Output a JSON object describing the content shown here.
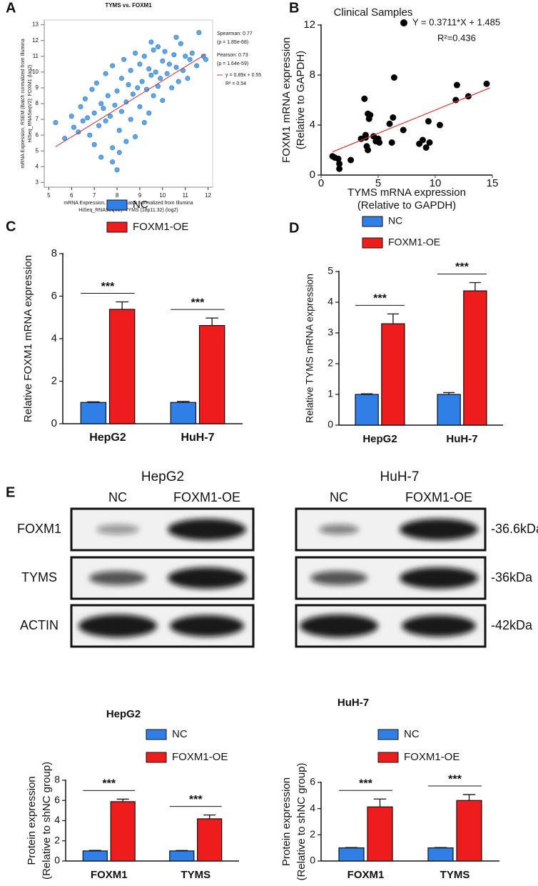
{
  "panel_labels": [
    "A",
    "B",
    "C",
    "D",
    "E"
  ],
  "chart_data": [
    {
      "type": "scatter",
      "title": "TYMS vs. FOXM1",
      "xlabel": [
        "mRNA Expression, RSEM (Batch normalized from Illumina",
        "HiSeq_RNASeqV2): TYMS (18p11.32) (log2)"
      ],
      "ylabel": [
        "mRNA Expression, RSEM (Batch normalized from Illumina",
        "HiSeq_RNASeqV2): FOXM1 (log2)"
      ],
      "xlim": [
        4.8,
        12.2
      ],
      "xticks": [
        5,
        6,
        7,
        8,
        9,
        10,
        11,
        12
      ],
      "ylim": [
        2.7,
        13.3
      ],
      "yticks": [
        3,
        4,
        5,
        6,
        7,
        8,
        9,
        10,
        11,
        12,
        13
      ],
      "color": "#4d9ee8",
      "x": [
        5.3,
        5.7,
        6.0,
        6.1,
        6.3,
        6.4,
        6.5,
        6.6,
        6.7,
        6.8,
        6.9,
        7.0,
        7.0,
        7.1,
        7.2,
        7.3,
        7.3,
        7.4,
        7.5,
        7.5,
        7.6,
        7.7,
        7.8,
        7.8,
        7.9,
        8.0,
        8.0,
        8.1,
        8.2,
        8.2,
        8.3,
        8.4,
        8.4,
        8.5,
        8.6,
        8.6,
        8.7,
        8.8,
        8.8,
        8.9,
        9.0,
        9.0,
        9.1,
        9.2,
        9.2,
        9.3,
        9.4,
        9.4,
        9.5,
        9.6,
        9.6,
        9.7,
        9.8,
        9.8,
        9.9,
        10.0,
        10.0,
        10.1,
        10.2,
        10.3,
        10.4,
        10.5,
        10.6,
        10.7,
        10.8,
        10.9,
        11.0,
        11.1,
        11.2,
        11.3,
        11.5,
        11.6,
        11.8,
        11.9,
        7.8,
        8.1,
        9.5,
        10.6
      ],
      "y": [
        6.8,
        5.8,
        7.2,
        6.5,
        6.2,
        7.8,
        6.9,
        8.3,
        7.1,
        6.0,
        8.9,
        7.4,
        5.4,
        9.3,
        6.6,
        8.0,
        4.6,
        7.7,
        6.9,
        9.9,
        8.5,
        7.2,
        4.3,
        10.4,
        7.9,
        3.8,
        8.8,
        6.3,
        9.6,
        7.5,
        10.8,
        8.1,
        5.6,
        9.2,
        7.0,
        10.1,
        8.6,
        5.9,
        11.2,
        9.0,
        7.8,
        10.5,
        9.4,
        6.8,
        11.0,
        8.9,
        10.2,
        7.4,
        9.8,
        11.4,
        8.5,
        10.0,
        9.1,
        11.6,
        9.6,
        10.7,
        8.2,
        11.3,
        9.9,
        10.5,
        9.0,
        11.1,
        10.3,
        9.4,
        11.8,
        10.1,
        11.0,
        9.6,
        10.8,
        11.2,
        10.4,
        12.5,
        11.0,
        10.8,
        5.2,
        4.9,
        11.9,
        12.2
      ],
      "annotations": [
        "Spearman: 0.77",
        "(p = 1.85e-68)",
        "Pearson: 0.73",
        "(p = 1.64e-59)"
      ],
      "fit": {
        "label": "y = 0.89x + 0.55",
        "r2_label": "R² = 0.54",
        "slope": 0.89,
        "intercept": 0.55,
        "x_range": [
          5.3,
          11.9
        ],
        "color": "#c8343c"
      }
    },
    {
      "type": "scatter",
      "title": "Clinical Samples",
      "xlabel": [
        "TYMS mRNA expression",
        "(Relative to GAPDH)"
      ],
      "ylabel": [
        "FOXM1 mRNA expression",
        "(Relative to GAPDH)"
      ],
      "xlim": [
        0,
        15
      ],
      "xticks": [
        0,
        5,
        10,
        15
      ],
      "ylim": [
        0,
        12
      ],
      "yticks": [
        0,
        4,
        8,
        12
      ],
      "color": "#000000",
      "x": [
        1.0,
        1.2,
        1.5,
        1.6,
        1.6,
        2.6,
        3.5,
        3.8,
        3.9,
        4.0,
        4.1,
        4.1,
        4.2,
        4.3,
        4.6,
        4.8,
        5.0,
        5.1,
        6.0,
        6.2,
        6.3,
        6.4,
        7.2,
        8.6,
        8.9,
        9.2,
        9.4,
        9.5,
        10.4,
        11.8,
        11.9,
        12.9,
        14.5,
        3.9
      ],
      "y": [
        1.5,
        1.4,
        1.3,
        0.9,
        0.5,
        1.2,
        2.9,
        6.1,
        3.2,
        2.3,
        4.9,
        2.0,
        4.5,
        4.8,
        3.1,
        2.7,
        2.9,
        2.6,
        4.1,
        2.6,
        4.6,
        7.8,
        3.6,
        2.5,
        2.8,
        2.2,
        4.3,
        2.6,
        4.0,
        6.0,
        7.2,
        6.3,
        7.3,
        3.0
      ],
      "fit": {
        "label": "Y = 0.3711*X + 1.485",
        "r2_label": "R²=0.436",
        "slope": 0.3711,
        "intercept": 1.485,
        "x_range": [
          1,
          14.8
        ],
        "color": "#d9342b",
        "text_color": "#2727c8"
      }
    },
    {
      "type": "bar",
      "ylabel": [
        "Relative FOXM1 mRNA expression"
      ],
      "categories": [
        "HepG2",
        "HuH-7"
      ],
      "ylim": [
        0,
        8
      ],
      "yticks": [
        0,
        2,
        4,
        6,
        8
      ],
      "series": [
        {
          "name": "NC",
          "color": "#2f7fe6",
          "values": [
            1.0,
            1.0
          ],
          "errors": [
            0.03,
            0.05
          ]
        },
        {
          "name": "FOXM1-OE",
          "color": "#ee1c1c",
          "values": [
            5.38,
            4.62
          ],
          "errors": [
            0.35,
            0.35
          ]
        }
      ],
      "significance": [
        "***",
        "***"
      ]
    },
    {
      "type": "bar",
      "ylabel": [
        "Relative TYMS mRNA expression"
      ],
      "categories": [
        "HepG2",
        "HuH-7"
      ],
      "ylim": [
        0,
        5
      ],
      "yticks": [
        0,
        1,
        2,
        3,
        4,
        5
      ],
      "series": [
        {
          "name": "NC",
          "color": "#2f7fe6",
          "values": [
            1.0,
            1.0
          ],
          "errors": [
            0.02,
            0.06
          ]
        },
        {
          "name": "FOXM1-OE",
          "color": "#ee1c1c",
          "values": [
            3.3,
            4.37
          ],
          "errors": [
            0.32,
            0.27
          ]
        }
      ],
      "significance": [
        "***",
        "***"
      ]
    },
    {
      "type": "bar",
      "title": "HepG2",
      "ylabel": [
        "Protein expression",
        "(Relative to shNC group)"
      ],
      "categories": [
        "FOXM1",
        "TYMS"
      ],
      "ylim": [
        0,
        8
      ],
      "yticks": [
        0,
        2,
        4,
        6,
        8
      ],
      "series": [
        {
          "name": "NC",
          "color": "#2f7fe6",
          "values": [
            1.0,
            1.0
          ],
          "errors": [
            0.05,
            0.04
          ]
        },
        {
          "name": "FOXM1-OE",
          "color": "#ee1c1c",
          "values": [
            5.88,
            4.18
          ],
          "errors": [
            0.25,
            0.38
          ]
        }
      ],
      "significance": [
        "***",
        "***"
      ]
    },
    {
      "type": "bar",
      "title": "HuH-7",
      "ylabel": [
        "Protein expression",
        "(Relative to shNC group)"
      ],
      "categories": [
        "FOXM1",
        "TYMS"
      ],
      "ylim": [
        0,
        6
      ],
      "yticks": [
        0,
        2,
        4,
        6
      ],
      "series": [
        {
          "name": "NC",
          "color": "#2f7fe6",
          "values": [
            1.0,
            1.0
          ],
          "errors": [
            0.03,
            0.03
          ]
        },
        {
          "name": "FOXM1-OE",
          "color": "#ee1c1c",
          "values": [
            4.13,
            4.62
          ],
          "errors": [
            0.6,
            0.45
          ]
        }
      ],
      "significance": [
        "***",
        "***"
      ]
    }
  ],
  "blot": {
    "cells": [
      {
        "title": "HepG2",
        "lanes": [
          "NC",
          "FOXM1-OE"
        ]
      },
      {
        "title": "HuH-7",
        "lanes": [
          "NC",
          "FOXM1-OE"
        ]
      }
    ],
    "rows": [
      "FOXM1",
      "TYMS",
      "ACTIN"
    ],
    "sizes": [
      "-36.6kDa",
      "-36kDa",
      "-42kDa"
    ]
  }
}
